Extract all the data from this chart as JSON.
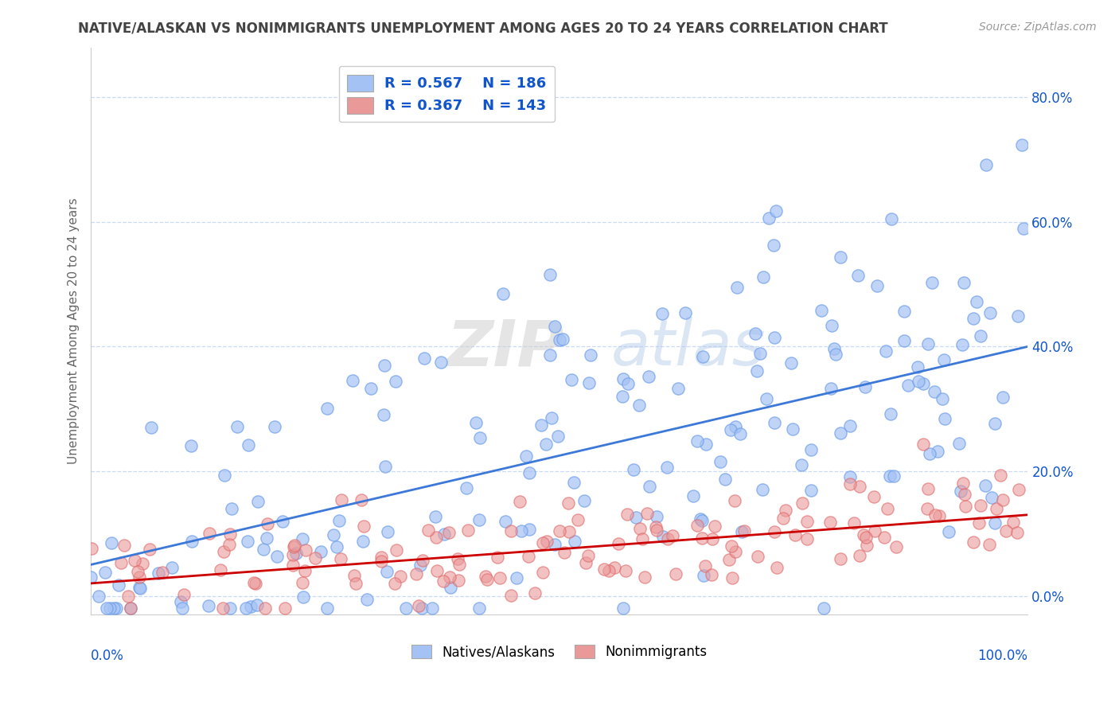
{
  "title": "NATIVE/ALASKAN VS NONIMMIGRANTS UNEMPLOYMENT AMONG AGES 20 TO 24 YEARS CORRELATION CHART",
  "source": "Source: ZipAtlas.com",
  "ylabel": "Unemployment Among Ages 20 to 24 years",
  "xlim": [
    0.0,
    1.0
  ],
  "ylim": [
    -0.03,
    0.88
  ],
  "yticks": [
    0.0,
    0.2,
    0.4,
    0.6,
    0.8
  ],
  "ytick_labels": [
    "0.0%",
    "20.0%",
    "40.0%",
    "60.0%",
    "80.0%"
  ],
  "legend1_label": "R = 0.567    N = 186",
  "legend2_label": "R = 0.367    N = 143",
  "legend_bottom1": "Natives/Alaskans",
  "legend_bottom2": "Nonimmigrants",
  "blue_color": "#a4c2f4",
  "blue_edge_color": "#6d9eeb",
  "pink_color": "#ea9999",
  "pink_edge_color": "#e06666",
  "blue_line_color": "#3c78d8",
  "pink_line_color": "#cc0000",
  "blue_r": 0.567,
  "blue_n": 186,
  "pink_r": 0.367,
  "pink_n": 143,
  "blue_intercept": 0.05,
  "blue_slope": 0.35,
  "pink_intercept": 0.02,
  "pink_slope": 0.11,
  "watermark_text": "ZIPatlas",
  "background_color": "#ffffff",
  "grid_color": "#c9daf8",
  "title_color": "#434343",
  "source_color": "#999999",
  "legend_text_color": "#1155cc",
  "ytick_color": "#1155cc",
  "xtick_color": "#1155cc"
}
